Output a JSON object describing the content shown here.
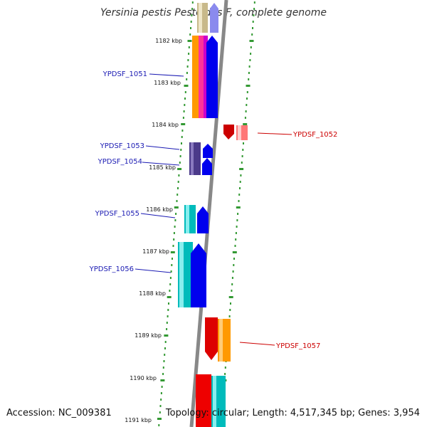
{
  "title": "Yersinia pestis Pestoides F, complete genome",
  "accession": "Accession: NC_009381",
  "summary": "Topology: circular; Length: 4,517,345 bp; Genes: 3,954",
  "colors": {
    "background": "#ffffff",
    "backbone": "#888888",
    "scale_ticks": "#339933",
    "forward_label": "#1a1ab3",
    "reverse_label": "#cc0000"
  },
  "scale_labels": [
    "1182 kbp",
    "1183 kbp",
    "1184 kbp",
    "1185 kbp",
    "1186 kbp",
    "1187 kbp",
    "1188 kbp",
    "1189 kbp",
    "1190 kbp",
    "1191 kbp"
  ],
  "gene_labels": [
    {
      "name": "YPDSF_1051",
      "strand": "forward"
    },
    {
      "name": "YPDSF_1052",
      "strand": "reverse"
    },
    {
      "name": "YPDSF_1053",
      "strand": "forward"
    },
    {
      "name": "YPDSF_1054",
      "strand": "forward"
    },
    {
      "name": "YPDSF_1055",
      "strand": "forward"
    },
    {
      "name": "YPDSF_1056",
      "strand": "forward"
    },
    {
      "name": "YPDSF_1057",
      "strand": "reverse"
    }
  ]
}
